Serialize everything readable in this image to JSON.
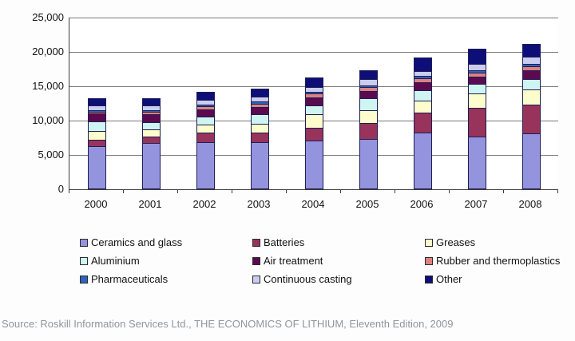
{
  "chart_data": {
    "type": "bar",
    "stacked": true,
    "categories": [
      "2000",
      "2001",
      "2002",
      "2003",
      "2004",
      "2005",
      "2006",
      "2007",
      "2008"
    ],
    "series": [
      {
        "name": "Ceramics and glass",
        "color": "#9494de",
        "values": [
          6150,
          6600,
          6800,
          6700,
          7000,
          7200,
          8100,
          7600,
          8000
        ]
      },
      {
        "name": "Batteries",
        "color": "#98335b",
        "values": [
          900,
          950,
          1300,
          1500,
          1850,
          2300,
          3000,
          4100,
          4200
        ]
      },
      {
        "name": "Greases",
        "color": "#fcfccc",
        "values": [
          1350,
          1100,
          1150,
          1250,
          1950,
          1850,
          1750,
          2100,
          2200
        ]
      },
      {
        "name": "Aluminium",
        "color": "#cff5f3",
        "values": [
          1350,
          1000,
          1250,
          1400,
          1270,
          1750,
          1400,
          1390,
          1500
        ]
      },
      {
        "name": "Air treatment",
        "color": "#5c0a50",
        "values": [
          1150,
          1200,
          1050,
          1050,
          1150,
          1050,
          1270,
          1040,
          1270
        ]
      },
      {
        "name": "Rubber and thermoplastics",
        "color": "#de8181",
        "values": [
          300,
          350,
          450,
          450,
          580,
          580,
          580,
          580,
          580
        ]
      },
      {
        "name": "Pharmaceuticals",
        "color": "#2e64bc",
        "values": [
          250,
          250,
          250,
          300,
          230,
          230,
          350,
          460,
          350
        ]
      },
      {
        "name": "Continuous casting",
        "color": "#caccf0",
        "values": [
          700,
          700,
          700,
          700,
          800,
          930,
          700,
          930,
          1040
        ]
      },
      {
        "name": "Other",
        "color": "#0e0e78",
        "values": [
          1150,
          1150,
          1300,
          1300,
          1500,
          1500,
          2080,
          2300,
          2080
        ]
      }
    ],
    "totals_approx": [
      13300,
      13300,
      14250,
      14650,
      16330,
      17390,
      19230,
      20500,
      21220
    ],
    "ylim": [
      0,
      25000
    ],
    "ytick_step": 5000,
    "ytick_labels": [
      "0",
      "5,000",
      "10,000",
      "15,000",
      "20,000",
      "25,000"
    ],
    "xlabel": "",
    "ylabel": "",
    "title": "",
    "grid": true,
    "legend_position": "bottom"
  },
  "source_line": "Source: Roskill Information Services Ltd., THE ECONOMICS OF LITHIUM, Eleventh Edition, 2009",
  "colors": {
    "background": "#fdfdfd",
    "plot_background": "#ffffff",
    "gridline": "#7a7a7a",
    "axis": "#3d3d3d",
    "segment_border": "#1e1e52",
    "source_text": "#8f969b"
  }
}
